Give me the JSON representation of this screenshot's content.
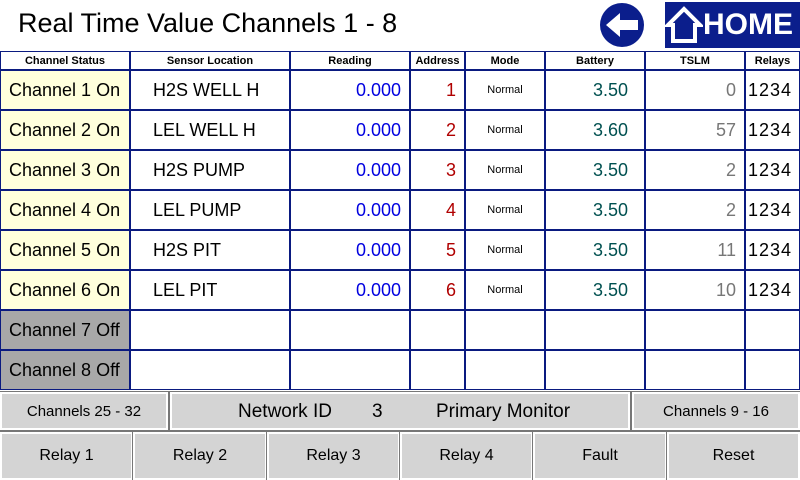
{
  "header": {
    "title": "Real Time Value Channels 1 - 8",
    "home": "HOME"
  },
  "table": {
    "columns": [
      "Channel Status",
      "Sensor Location",
      "Reading",
      "Address",
      "Mode",
      "Battery",
      "TSLM",
      "Relays"
    ],
    "rows": [
      {
        "on": true,
        "status": "Channel 1 On",
        "location": "H2S WELL H",
        "reading": "0.000",
        "address": "1",
        "mode": "Normal",
        "battery": "3.50",
        "tslm": "0",
        "relays": "1234"
      },
      {
        "on": true,
        "status": "Channel 2 On",
        "location": "LEL WELL H",
        "reading": "0.000",
        "address": "2",
        "mode": "Normal",
        "battery": "3.60",
        "tslm": "57",
        "relays": "1234"
      },
      {
        "on": true,
        "status": "Channel 3 On",
        "location": "H2S PUMP",
        "reading": "0.000",
        "address": "3",
        "mode": "Normal",
        "battery": "3.50",
        "tslm": "2",
        "relays": "1234"
      },
      {
        "on": true,
        "status": "Channel 4 On",
        "location": "LEL PUMP",
        "reading": "0.000",
        "address": "4",
        "mode": "Normal",
        "battery": "3.50",
        "tslm": "2",
        "relays": "1234"
      },
      {
        "on": true,
        "status": "Channel 5 On",
        "location": "H2S PIT",
        "reading": "0.000",
        "address": "5",
        "mode": "Normal",
        "battery": "3.50",
        "tslm": "11",
        "relays": "1234"
      },
      {
        "on": true,
        "status": "Channel 6 On",
        "location": "LEL PIT",
        "reading": "0.000",
        "address": "6",
        "mode": "Normal",
        "battery": "3.50",
        "tslm": "10",
        "relays": "1234"
      },
      {
        "on": false,
        "status": "Channel 7 Off"
      },
      {
        "on": false,
        "status": "Channel 8 Off"
      }
    ]
  },
  "status_bar": {
    "left_button": "Channels 25 - 32",
    "network_label": "Network ID",
    "network_id": "3",
    "role": "Primary Monitor",
    "right_button": "Channels 9 - 16"
  },
  "buttons": [
    "Relay 1",
    "Relay 2",
    "Relay 3",
    "Relay 4",
    "Fault",
    "Reset"
  ]
}
